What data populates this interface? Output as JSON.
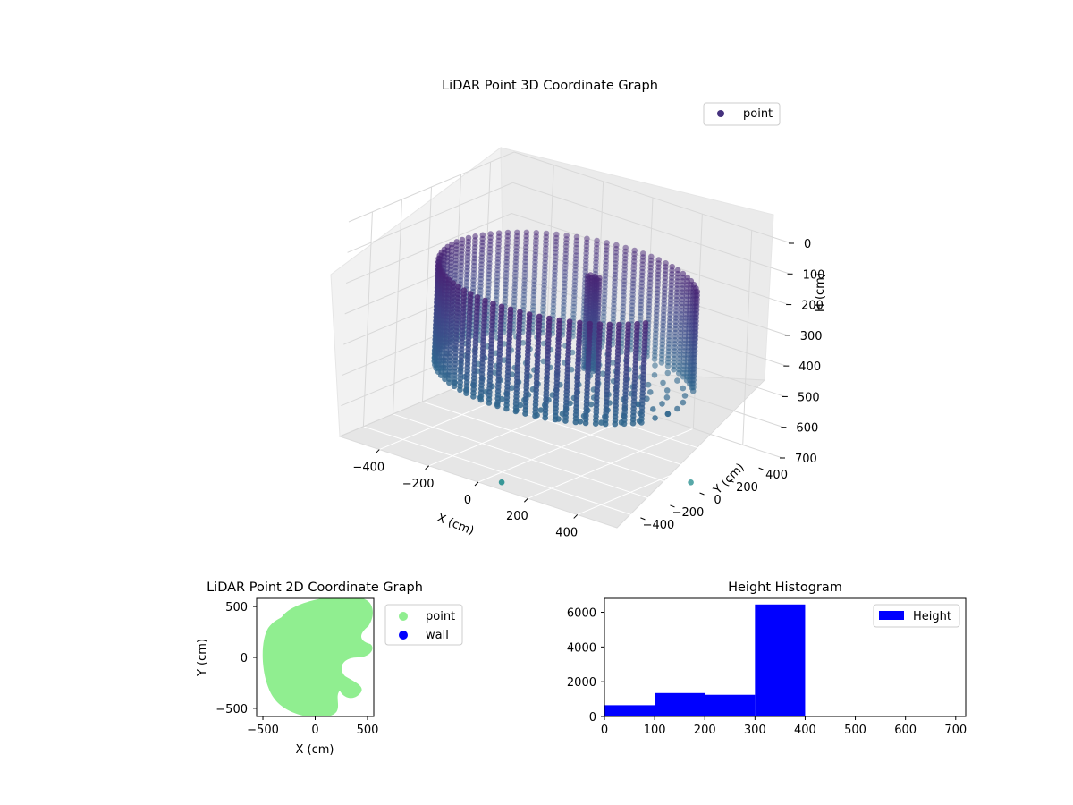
{
  "chart_data": [
    {
      "type": "scatter",
      "projection": "3d",
      "title": "LiDAR Point 3D Coordinate Graph",
      "xlabel": "X (cm)",
      "ylabel": "Y (cm)",
      "zlabel": "H (cm)",
      "xticks": [
        "−400",
        "−200",
        "0",
        "200",
        "400"
      ],
      "yticks": [
        "−400",
        "−200",
        "0",
        "200",
        "400"
      ],
      "zticks": [
        "0",
        "100",
        "200",
        "300",
        "400",
        "500",
        "600",
        "700"
      ],
      "xlim": [
        -560,
        560
      ],
      "ylim": [
        -560,
        560
      ],
      "zlim": [
        0,
        700
      ],
      "z_inverted": true,
      "colormap": "viridis",
      "legend": [
        {
          "label": "point",
          "color": "#46327e"
        }
      ],
      "legend_position": "top-right",
      "structure": {
        "wall_radius": 450,
        "wall_height_range": [
          150,
          480
        ],
        "wall_gap_angle_range_deg": [
          -20,
          35
        ],
        "floor_height": 480,
        "central_object": {
          "x": 50,
          "y": 80,
          "height_range": [
            150,
            450
          ]
        },
        "outliers": [
          {
            "x": 70,
            "y": -520,
            "h": 690
          },
          {
            "x": 500,
            "y": 40,
            "h": 690
          }
        ]
      }
    },
    {
      "type": "scatter",
      "title": "LiDAR Point 2D Coordinate Graph",
      "xlabel": "X (cm)",
      "ylabel": "Y (cm)",
      "xticks": [
        "−500",
        "0",
        "500"
      ],
      "yticks": [
        "500",
        "0",
        "−500"
      ],
      "xlim": [
        -560,
        560
      ],
      "ylim": [
        -580,
        580
      ],
      "legend": [
        {
          "label": "point",
          "color": "#90ee90"
        },
        {
          "label": "wall",
          "color": "#0000ff"
        }
      ],
      "legend_position": "outside-right",
      "point_region": {
        "shape": "disk",
        "center": [
          0,
          0
        ],
        "radius": 500,
        "color": "#90ee90"
      }
    },
    {
      "type": "bar",
      "title": "Height Histogram",
      "xticks": [
        "0",
        "100",
        "200",
        "300",
        "400",
        "500",
        "600",
        "700"
      ],
      "yticks": [
        "0",
        "2000",
        "4000",
        "6000"
      ],
      "xlim": [
        0,
        720
      ],
      "ylim": [
        0,
        6800
      ],
      "bin_edges": [
        0,
        100,
        200,
        300,
        400,
        500,
        600,
        700
      ],
      "values": [
        650,
        1350,
        1250,
        6450,
        50,
        8,
        5
      ],
      "color": "#0000ff",
      "legend": [
        {
          "label": "Height",
          "color": "#0000ff"
        }
      ],
      "legend_position": "top-right"
    }
  ]
}
